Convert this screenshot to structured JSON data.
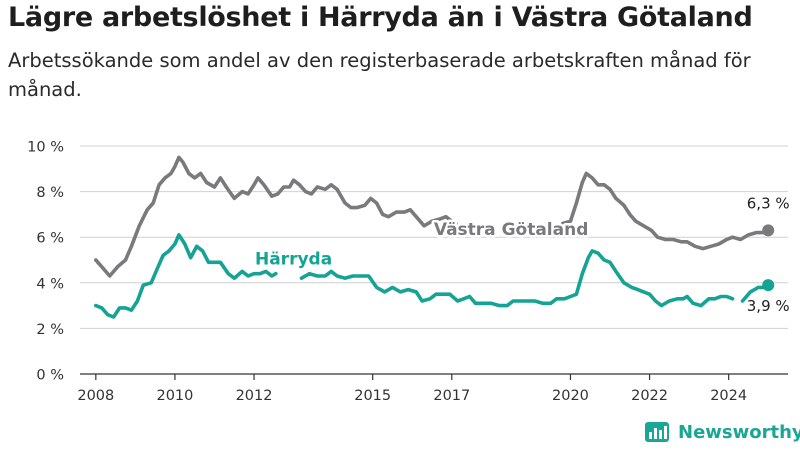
{
  "title": "Lägre arbetslöshet i Härryda än i Västra Götaland",
  "subtitle": "Arbetssökande som andel av den registerbaserade arbetskraften månad för månad.",
  "brand": "Newsworthy",
  "colors": {
    "vg": "#7a7a7c",
    "harryda": "#14a394",
    "grid": "#d0d0d0",
    "axis": "#333333"
  },
  "chart_data": {
    "type": "line",
    "ylim": [
      0,
      10
    ],
    "xlim": [
      2007.6,
      2025.5
    ],
    "y_ticks": [
      {
        "value": 0,
        "label": "0 %"
      },
      {
        "value": 2,
        "label": "2 %"
      },
      {
        "value": 4,
        "label": "4 %"
      },
      {
        "value": 6,
        "label": "6 %"
      },
      {
        "value": 8,
        "label": "8 %"
      },
      {
        "value": 10,
        "label": "10 %"
      }
    ],
    "x_ticks": [
      {
        "value": 2008,
        "label": "2008"
      },
      {
        "value": 2010,
        "label": "2010"
      },
      {
        "value": 2012,
        "label": "2012"
      },
      {
        "value": 2015,
        "label": "2015"
      },
      {
        "value": 2017,
        "label": "2017"
      },
      {
        "value": 2020,
        "label": "2020"
      },
      {
        "value": 2022,
        "label": "2022"
      },
      {
        "value": 2024,
        "label": "2024"
      }
    ],
    "grid": "horizontal",
    "series": [
      {
        "name": "Västra Götaland",
        "key": "vg",
        "end_label": "6,3 %",
        "end_value": 6.3,
        "segments": [
          [
            [
              2008.0,
              5.0
            ],
            [
              2008.15,
              4.7
            ],
            [
              2008.35,
              4.3
            ],
            [
              2008.55,
              4.7
            ],
            [
              2008.75,
              5.0
            ],
            [
              2008.9,
              5.6
            ],
            [
              2009.1,
              6.5
            ],
            [
              2009.3,
              7.2
            ],
            [
              2009.45,
              7.5
            ],
            [
              2009.6,
              8.3
            ],
            [
              2009.75,
              8.6
            ],
            [
              2009.9,
              8.8
            ],
            [
              2010.0,
              9.1
            ],
            [
              2010.1,
              9.5
            ],
            [
              2010.2,
              9.3
            ],
            [
              2010.35,
              8.8
            ],
            [
              2010.5,
              8.6
            ],
            [
              2010.65,
              8.8
            ],
            [
              2010.8,
              8.4
            ],
            [
              2011.0,
              8.2
            ],
            [
              2011.15,
              8.6
            ],
            [
              2011.3,
              8.2
            ],
            [
              2011.5,
              7.7
            ],
            [
              2011.7,
              8.0
            ],
            [
              2011.85,
              7.9
            ],
            [
              2012.0,
              8.3
            ],
            [
              2012.1,
              8.6
            ],
            [
              2012.25,
              8.3
            ],
            [
              2012.45,
              7.8
            ],
            [
              2012.6,
              7.9
            ],
            [
              2012.75,
              8.2
            ],
            [
              2012.9,
              8.2
            ],
            [
              2013.0,
              8.5
            ],
            [
              2013.15,
              8.3
            ],
            [
              2013.3,
              8.0
            ],
            [
              2013.45,
              7.9
            ],
            [
              2013.6,
              8.2
            ],
            [
              2013.8,
              8.1
            ],
            [
              2013.95,
              8.3
            ],
            [
              2014.1,
              8.1
            ],
            [
              2014.3,
              7.5
            ],
            [
              2014.45,
              7.3
            ],
            [
              2014.6,
              7.3
            ],
            [
              2014.8,
              7.4
            ],
            [
              2014.95,
              7.7
            ],
            [
              2015.1,
              7.5
            ],
            [
              2015.25,
              7.0
            ],
            [
              2015.4,
              6.9
            ],
            [
              2015.6,
              7.1
            ],
            [
              2015.8,
              7.1
            ],
            [
              2015.95,
              7.2
            ],
            [
              2016.1,
              6.9
            ],
            [
              2016.3,
              6.5
            ],
            [
              2016.5,
              6.7
            ],
            [
              2016.7,
              6.8
            ],
            [
              2016.85,
              6.9
            ],
            [
              2017.0,
              6.7
            ],
            [
              2017.1,
              6.6
            ]
          ],
          [
            [
              2019.8,
              6.6
            ],
            [
              2020.0,
              6.7
            ],
            [
              2020.15,
              7.5
            ],
            [
              2020.3,
              8.4
            ],
            [
              2020.4,
              8.8
            ],
            [
              2020.55,
              8.6
            ],
            [
              2020.7,
              8.3
            ],
            [
              2020.85,
              8.3
            ],
            [
              2021.0,
              8.1
            ],
            [
              2021.15,
              7.7
            ],
            [
              2021.35,
              7.4
            ],
            [
              2021.5,
              7.0
            ],
            [
              2021.65,
              6.7
            ],
            [
              2021.85,
              6.5
            ],
            [
              2022.05,
              6.3
            ],
            [
              2022.2,
              6.0
            ],
            [
              2022.4,
              5.9
            ],
            [
              2022.6,
              5.9
            ],
            [
              2022.8,
              5.8
            ],
            [
              2022.95,
              5.8
            ],
            [
              2023.15,
              5.6
            ],
            [
              2023.35,
              5.5
            ],
            [
              2023.55,
              5.6
            ],
            [
              2023.75,
              5.7
            ],
            [
              2023.95,
              5.9
            ],
            [
              2024.1,
              6.0
            ],
            [
              2024.3,
              5.9
            ],
            [
              2024.5,
              6.1
            ],
            [
              2024.7,
              6.2
            ],
            [
              2024.9,
              6.2
            ],
            [
              2025.0,
              6.3
            ]
          ]
        ]
      },
      {
        "name": "Härryda",
        "key": "harryda",
        "end_label": "3,9 %",
        "end_value": 3.9,
        "segments": [
          [
            [
              2008.0,
              3.0
            ],
            [
              2008.15,
              2.9
            ],
            [
              2008.3,
              2.6
            ],
            [
              2008.45,
              2.5
            ],
            [
              2008.6,
              2.9
            ],
            [
              2008.75,
              2.9
            ],
            [
              2008.9,
              2.8
            ],
            [
              2009.05,
              3.2
            ],
            [
              2009.2,
              3.9
            ],
            [
              2009.4,
              4.0
            ],
            [
              2009.55,
              4.6
            ],
            [
              2009.7,
              5.2
            ],
            [
              2009.85,
              5.4
            ],
            [
              2010.0,
              5.7
            ],
            [
              2010.1,
              6.1
            ],
            [
              2010.25,
              5.7
            ],
            [
              2010.4,
              5.1
            ],
            [
              2010.55,
              5.6
            ],
            [
              2010.7,
              5.4
            ],
            [
              2010.85,
              4.9
            ],
            [
              2011.0,
              4.9
            ],
            [
              2011.15,
              4.9
            ],
            [
              2011.35,
              4.4
            ],
            [
              2011.5,
              4.2
            ],
            [
              2011.7,
              4.5
            ],
            [
              2011.85,
              4.3
            ],
            [
              2012.0,
              4.4
            ],
            [
              2012.15,
              4.4
            ],
            [
              2012.3,
              4.5
            ],
            [
              2012.45,
              4.3
            ],
            [
              2012.55,
              4.4
            ]
          ],
          [
            [
              2013.2,
              4.2
            ],
            [
              2013.4,
              4.4
            ],
            [
              2013.6,
              4.3
            ],
            [
              2013.8,
              4.3
            ],
            [
              2013.95,
              4.5
            ],
            [
              2014.1,
              4.3
            ],
            [
              2014.3,
              4.2
            ],
            [
              2014.5,
              4.3
            ],
            [
              2014.7,
              4.3
            ],
            [
              2014.9,
              4.3
            ],
            [
              2015.1,
              3.8
            ],
            [
              2015.3,
              3.6
            ],
            [
              2015.5,
              3.8
            ],
            [
              2015.7,
              3.6
            ],
            [
              2015.9,
              3.7
            ],
            [
              2016.1,
              3.6
            ],
            [
              2016.25,
              3.2
            ],
            [
              2016.45,
              3.3
            ],
            [
              2016.6,
              3.5
            ],
            [
              2016.8,
              3.5
            ],
            [
              2016.95,
              3.5
            ],
            [
              2017.15,
              3.2
            ],
            [
              2017.3,
              3.3
            ],
            [
              2017.45,
              3.4
            ],
            [
              2017.6,
              3.1
            ],
            [
              2017.8,
              3.1
            ],
            [
              2018.0,
              3.1
            ],
            [
              2018.2,
              3.0
            ],
            [
              2018.4,
              3.0
            ],
            [
              2018.55,
              3.2
            ],
            [
              2018.7,
              3.2
            ],
            [
              2018.9,
              3.2
            ],
            [
              2019.1,
              3.2
            ],
            [
              2019.3,
              3.1
            ],
            [
              2019.5,
              3.1
            ],
            [
              2019.65,
              3.3
            ],
            [
              2019.85,
              3.3
            ],
            [
              2020.0,
              3.4
            ],
            [
              2020.15,
              3.5
            ],
            [
              2020.3,
              4.4
            ],
            [
              2020.45,
              5.1
            ],
            [
              2020.55,
              5.4
            ],
            [
              2020.7,
              5.3
            ],
            [
              2020.85,
              5.0
            ],
            [
              2021.0,
              4.9
            ],
            [
              2021.15,
              4.5
            ],
            [
              2021.35,
              4.0
            ],
            [
              2021.55,
              3.8
            ],
            [
              2021.7,
              3.7
            ],
            [
              2021.85,
              3.6
            ],
            [
              2022.0,
              3.5
            ],
            [
              2022.15,
              3.2
            ],
            [
              2022.3,
              3.0
            ],
            [
              2022.5,
              3.2
            ],
            [
              2022.7,
              3.3
            ],
            [
              2022.85,
              3.3
            ],
            [
              2022.95,
              3.4
            ],
            [
              2023.1,
              3.1
            ],
            [
              2023.3,
              3.0
            ],
            [
              2023.5,
              3.3
            ],
            [
              2023.65,
              3.3
            ],
            [
              2023.8,
              3.4
            ],
            [
              2023.95,
              3.4
            ],
            [
              2024.1,
              3.3
            ]
          ],
          [
            [
              2024.35,
              3.2
            ],
            [
              2024.55,
              3.6
            ],
            [
              2024.75,
              3.8
            ],
            [
              2024.9,
              3.8
            ],
            [
              2025.0,
              3.9
            ]
          ]
        ]
      }
    ],
    "annotations": [
      {
        "series": "vg",
        "text": "Västra Götaland",
        "x": 2018.5,
        "y": 6.1
      },
      {
        "series": "harryda",
        "text": "Härryda",
        "x": 2013.0,
        "y": 4.8
      }
    ]
  }
}
